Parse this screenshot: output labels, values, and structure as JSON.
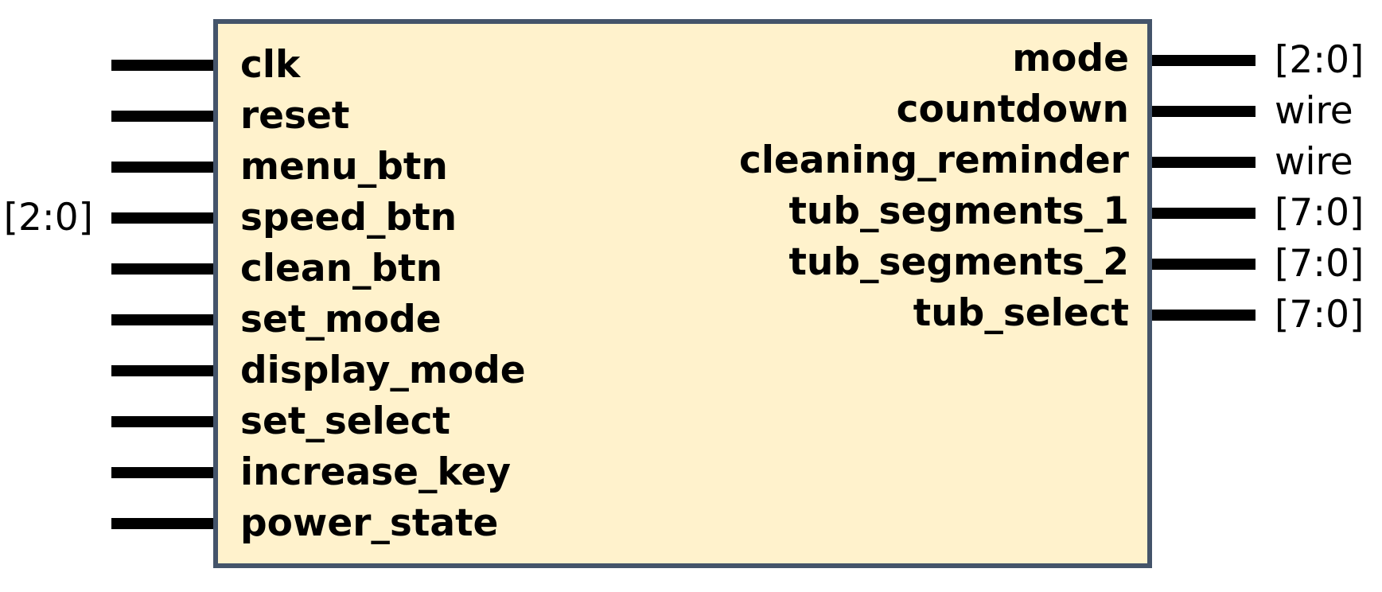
{
  "colors": {
    "module_fill": "#fff2cc",
    "module_border": "#44546a",
    "pin": "#000000",
    "text": "#000000"
  },
  "inputs": [
    {
      "name": "clk",
      "type": ""
    },
    {
      "name": "reset",
      "type": ""
    },
    {
      "name": "menu_btn",
      "type": ""
    },
    {
      "name": "speed_btn",
      "type": "[2:0]"
    },
    {
      "name": "clean_btn",
      "type": ""
    },
    {
      "name": "set_mode",
      "type": ""
    },
    {
      "name": "display_mode",
      "type": ""
    },
    {
      "name": "set_select",
      "type": ""
    },
    {
      "name": "increase_key",
      "type": ""
    },
    {
      "name": "power_state",
      "type": ""
    }
  ],
  "outputs": [
    {
      "name": "mode",
      "type": "[2:0]"
    },
    {
      "name": "countdown",
      "type": "wire"
    },
    {
      "name": "cleaning_reminder",
      "type": "wire"
    },
    {
      "name": "tub_segments_1",
      "type": "[7:0]"
    },
    {
      "name": "tub_segments_2",
      "type": "[7:0]"
    },
    {
      "name": "tub_select",
      "type": "[7:0]"
    }
  ]
}
